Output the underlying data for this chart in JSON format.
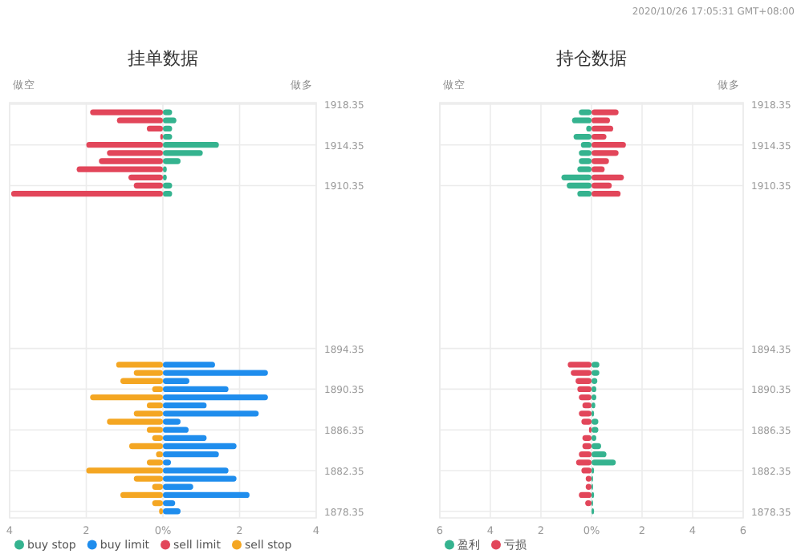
{
  "chart_data": [
    {
      "type": "bar",
      "orientation": "horizontal",
      "stacked": true,
      "title": "挂单数据",
      "annotations": [
        "做空",
        "做多",
        "2020/10/26 17:05:31 GMT+08:00"
      ],
      "xlim": [
        -4,
        4
      ],
      "xticks": [
        {
          "value": -4,
          "label": "4"
        },
        {
          "value": -2,
          "label": "2"
        },
        {
          "value": 0,
          "label": "0%"
        },
        2,
        4
      ],
      "ylim": [
        1877.7,
        1918.5
      ],
      "yticks": [
        1878.35,
        1882.35,
        1886.35,
        1890.35,
        1894.35,
        1910.35,
        1914.35,
        1918.35
      ],
      "grid": true,
      "legend": "bottom left",
      "x": [
        1878.35,
        1879.15,
        1879.95,
        1880.75,
        1881.55,
        1882.35,
        1883.15,
        1883.95,
        1884.75,
        1885.55,
        1886.35,
        1887.15,
        1887.95,
        1888.75,
        1889.55,
        1890.35,
        1891.15,
        1891.95,
        1892.75,
        1909.55,
        1910.35,
        1911.15,
        1911.95,
        1912.75,
        1913.55,
        1914.35,
        1915.15,
        1915.95,
        1916.75,
        1917.55
      ],
      "series": [
        {
          "name": "buy stop",
          "color": "#35b38f",
          "values": [
            null,
            null,
            null,
            null,
            null,
            null,
            null,
            null,
            null,
            null,
            null,
            null,
            null,
            null,
            null,
            null,
            null,
            null,
            null,
            0.24,
            0.24,
            0.1,
            0.1,
            0.46,
            1.04,
            1.46,
            0.24,
            0.24,
            0.35,
            0.24
          ]
        },
        {
          "name": "buy limit",
          "color": "#1f8ded",
          "values": [
            0.46,
            0.32,
            2.26,
            0.79,
            1.92,
            1.71,
            0.21,
            1.46,
            1.92,
            1.14,
            0.67,
            0.46,
            2.5,
            1.14,
            2.74,
            1.71,
            0.69,
            2.74,
            1.36,
            null,
            null,
            null,
            null,
            null,
            null,
            null,
            null,
            null,
            null,
            null
          ]
        },
        {
          "name": "sell limit",
          "color": "#e2465a",
          "values": [
            null,
            null,
            null,
            null,
            null,
            null,
            null,
            null,
            null,
            null,
            null,
            null,
            null,
            null,
            null,
            null,
            null,
            null,
            null,
            -3.96,
            -0.76,
            -0.9,
            -2.25,
            -1.67,
            -1.46,
            -2.0,
            -0.07,
            -0.42,
            -1.2,
            -1.9
          ]
        },
        {
          "name": "sell stop",
          "color": "#f4a622",
          "values": [
            -0.1,
            -0.28,
            -1.11,
            -0.28,
            -0.76,
            -2.0,
            -0.42,
            -0.18,
            -0.88,
            -0.28,
            -0.42,
            -1.46,
            -0.76,
            -0.42,
            -1.9,
            -0.28,
            -1.11,
            -0.76,
            -1.22,
            null,
            null,
            null,
            null,
            null,
            null,
            null,
            null,
            null,
            null,
            null
          ]
        }
      ]
    },
    {
      "type": "bar",
      "orientation": "horizontal",
      "stacked": true,
      "title": "持仓数据",
      "annotations": [
        "做空",
        "做多"
      ],
      "xlim": [
        -6,
        6
      ],
      "xticks": [
        {
          "value": -6,
          "label": "6"
        },
        {
          "value": -4,
          "label": "4"
        },
        {
          "value": -2,
          "label": "2"
        },
        {
          "value": 0,
          "label": "0%"
        },
        2,
        4,
        6
      ],
      "ylim": [
        1877.7,
        1918.5
      ],
      "yticks": [
        1878.35,
        1882.35,
        1886.35,
        1890.35,
        1894.35,
        1910.35,
        1914.35,
        1918.35
      ],
      "grid": true,
      "legend": "bottom left",
      "x": [
        1878.35,
        1879.15,
        1879.95,
        1880.75,
        1881.55,
        1882.35,
        1883.15,
        1883.95,
        1884.75,
        1885.55,
        1886.35,
        1887.15,
        1887.95,
        1888.75,
        1889.55,
        1890.35,
        1891.15,
        1891.95,
        1892.75,
        1909.55,
        1910.35,
        1911.15,
        1911.95,
        1912.75,
        1913.55,
        1914.35,
        1915.15,
        1915.95,
        1916.75,
        1917.55
      ],
      "series": [
        {
          "name": "盈利",
          "color": "#35b38f",
          "values": [
            0.1,
            0.06,
            0.1,
            0.06,
            0.06,
            0.1,
            0.96,
            0.59,
            0.38,
            0.19,
            0.27,
            0.27,
            0.1,
            0.15,
            0.19,
            0.19,
            0.23,
            0.31,
            0.31,
            -0.56,
            -0.98,
            -1.19,
            -0.56,
            -0.5,
            -0.5,
            -0.42,
            -0.71,
            -0.21,
            -0.77,
            -0.5
          ]
        },
        {
          "name": "亏损",
          "color": "#e2465a",
          "values": [
            null,
            -0.25,
            -0.5,
            -0.23,
            -0.23,
            -0.4,
            -0.61,
            -0.5,
            -0.36,
            -0.36,
            -0.1,
            -0.4,
            -0.5,
            -0.36,
            -0.5,
            -0.56,
            -0.63,
            -0.82,
            -0.94,
            1.15,
            0.8,
            1.28,
            0.52,
            0.69,
            1.07,
            1.36,
            0.59,
            0.86,
            0.73,
            1.07
          ]
        }
      ]
    }
  ]
}
